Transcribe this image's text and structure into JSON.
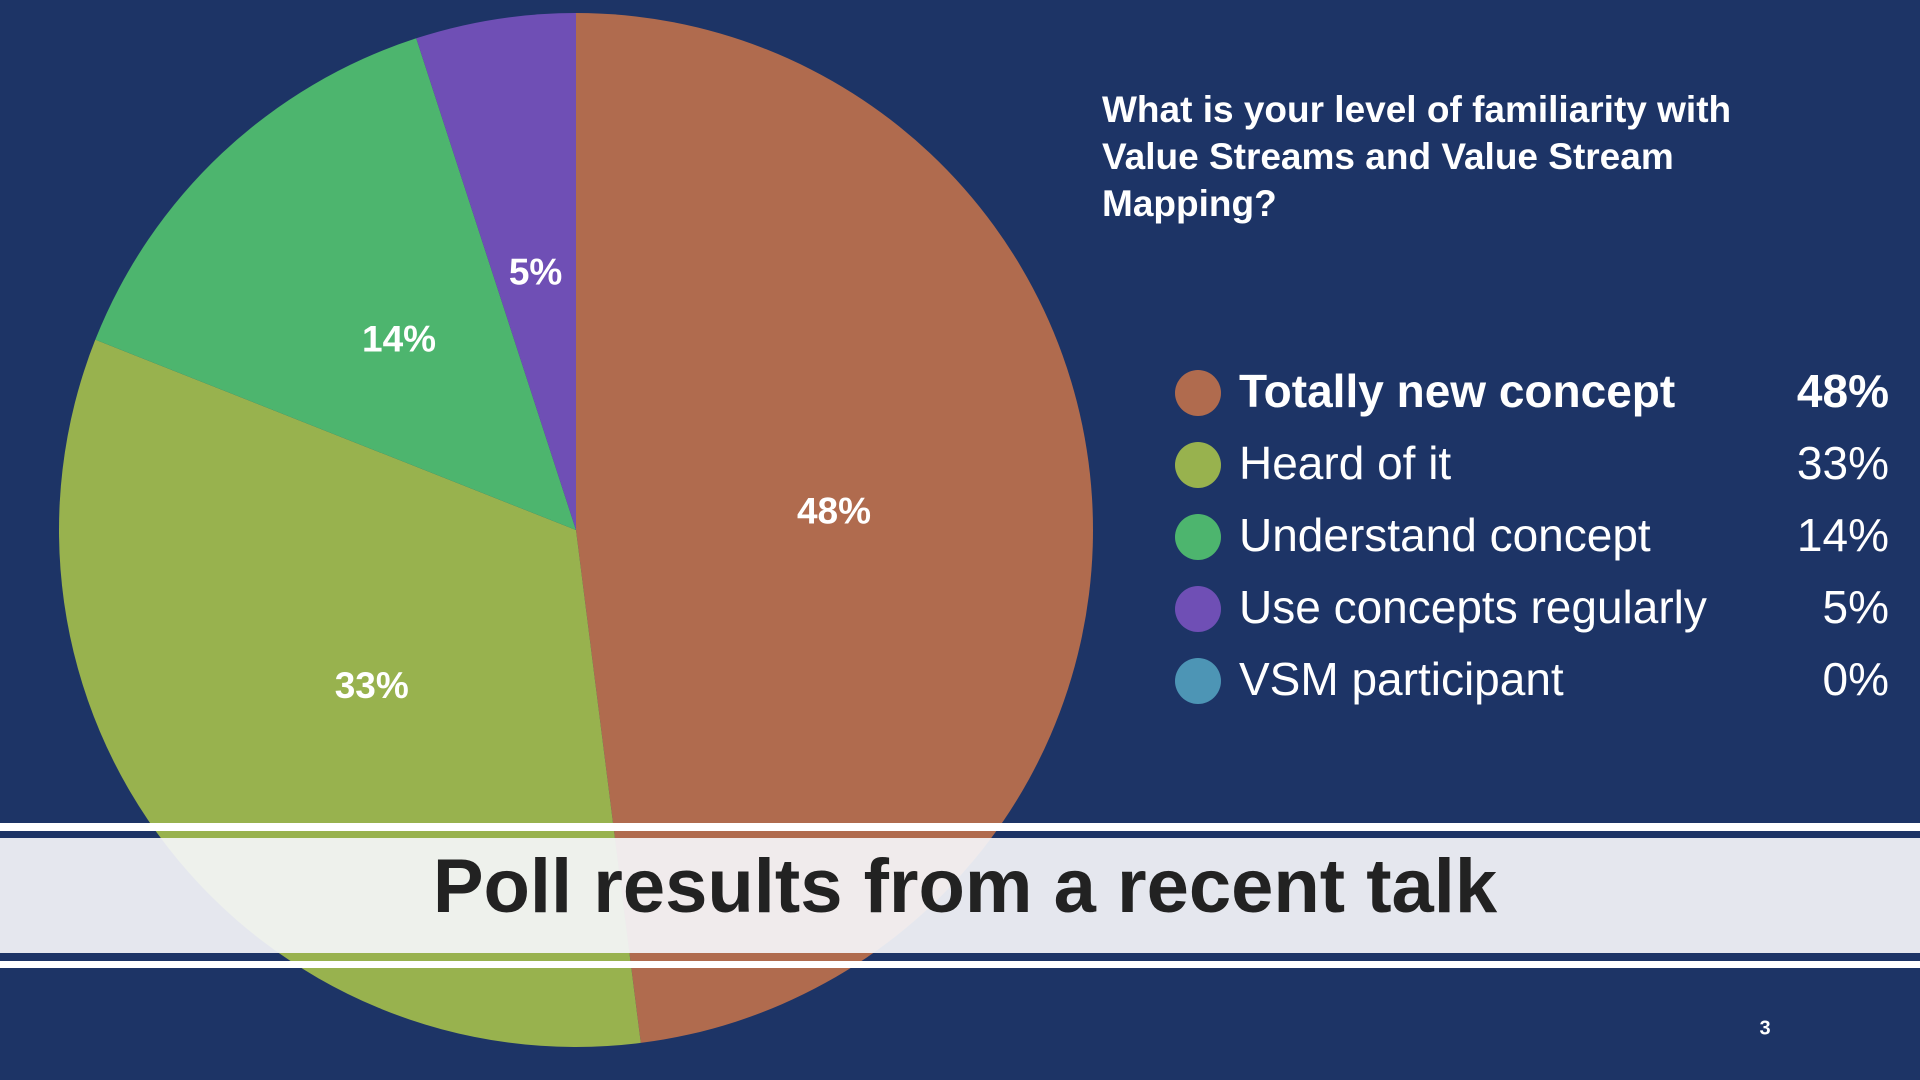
{
  "chart_data": {
    "type": "pie",
    "title": "What is your level of familiarity with Value Streams and Value Stream Mapping?",
    "categories": [
      "Totally new concept",
      "Heard of it",
      "Understand concept",
      "Use concepts regularly",
      "VSM participant"
    ],
    "values": [
      48,
      33,
      14,
      5,
      0
    ],
    "value_labels": [
      "48%",
      "33%",
      "14%",
      "5%",
      "0%"
    ],
    "colors": [
      "#b06b4e",
      "#98b24e",
      "#4db56e",
      "#6f4fb5",
      "#4d95b5"
    ]
  },
  "slide": {
    "banner": "Poll results from a recent talk",
    "page_number": "3"
  }
}
